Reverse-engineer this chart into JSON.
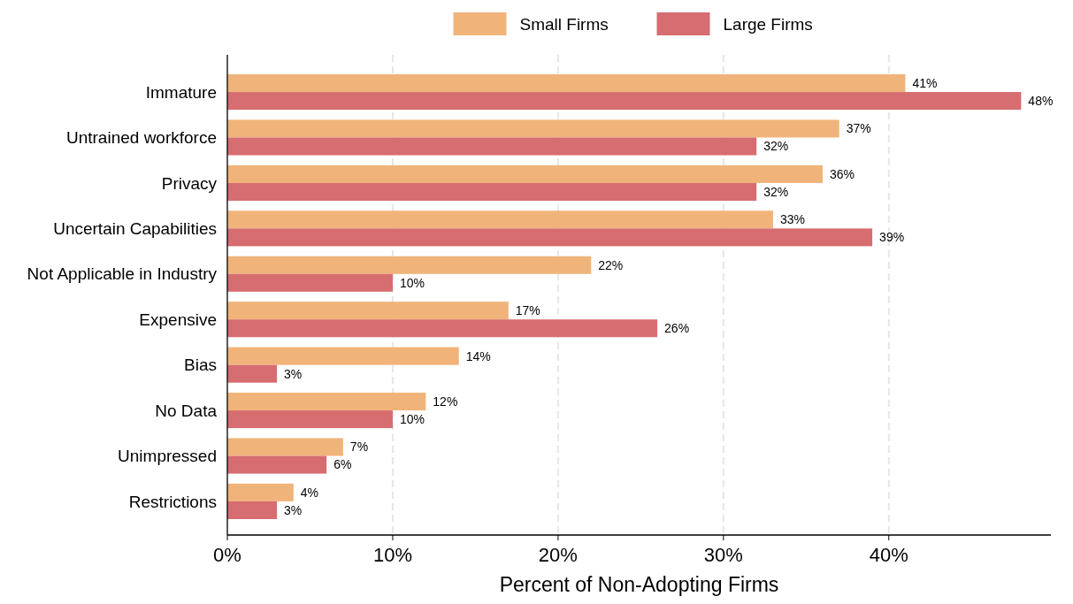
{
  "chart_data": {
    "type": "bar",
    "orientation": "horizontal",
    "xlabel": "Percent of Non-Adopting Firms",
    "categories": [
      "Immature",
      "Untrained workforce",
      "Privacy",
      "Uncertain Capabilities",
      "Not Applicable in Industry",
      "Expensive",
      "Bias",
      "No Data",
      "Unimpressed",
      "Restrictions"
    ],
    "series": [
      {
        "name": "Small Firms",
        "color": "#f0b47a",
        "values": [
          41,
          37,
          36,
          33,
          22,
          17,
          14,
          12,
          7,
          4
        ],
        "value_labels": [
          "41%",
          "37%",
          "36%",
          "33%",
          "22%",
          "17%",
          "14%",
          "12%",
          "7%",
          "4%"
        ]
      },
      {
        "name": "Large Firms",
        "color": "#d66d70",
        "values": [
          48,
          32,
          32,
          39,
          10,
          26,
          3,
          10,
          6,
          3
        ],
        "value_labels": [
          "48%",
          "32%",
          "32%",
          "39%",
          "10%",
          "26%",
          "3%",
          "10%",
          "6%",
          "3%"
        ]
      }
    ],
    "xlim": [
      0,
      49.8
    ],
    "xticks": [
      {
        "value": 0,
        "label": "0%"
      },
      {
        "value": 10,
        "label": "10%"
      },
      {
        "value": 20,
        "label": "20%"
      },
      {
        "value": 30,
        "label": "30%"
      },
      {
        "value": 40,
        "label": "40%"
      }
    ],
    "grid": "x",
    "legend": "top"
  }
}
